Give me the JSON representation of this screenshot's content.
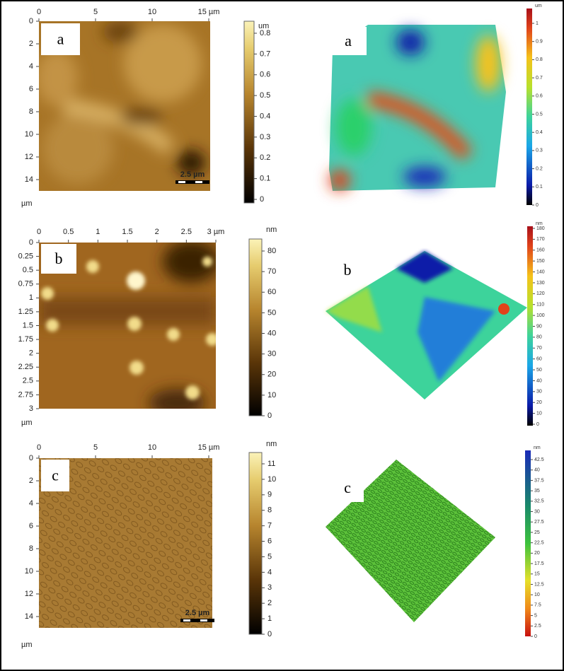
{
  "panels": [
    {
      "label": "a",
      "image2d": {
        "xticks": [
          "0",
          "5",
          "10",
          "15 µm"
        ],
        "yticks": [
          "0",
          "2",
          "4",
          "6",
          "8",
          "10",
          "12",
          "14"
        ],
        "axis_unit": "µm",
        "scale_bar": "2.5 µm"
      },
      "colorbar2d": {
        "unit": "um",
        "ticks": [
          "0.8",
          "0.7",
          "0.6",
          "0.5",
          "0.4",
          "0.3",
          "0.2",
          "0.1",
          "0"
        ]
      },
      "colorbar3d": {
        "unit": "um",
        "ticks": [
          "1",
          "0.9",
          "0.8",
          "0.7",
          "0.6",
          "0.5",
          "0.4",
          "0.3",
          "0.2",
          "0.1",
          "0"
        ]
      }
    },
    {
      "label": "b",
      "image2d": {
        "xticks": [
          "0",
          "0.5",
          "1",
          "1.5",
          "2",
          "2.5",
          "3 µm"
        ],
        "yticks": [
          "0",
          "0.25",
          "0.5",
          "0.75",
          "1",
          "1.25",
          "1.5",
          "1.75",
          "2",
          "2.25",
          "2.5",
          "2.75",
          "3"
        ],
        "axis_unit": "µm"
      },
      "colorbar2d": {
        "unit": "nm",
        "ticks": [
          "80",
          "70",
          "60",
          "50",
          "40",
          "30",
          "20",
          "10",
          "0"
        ]
      },
      "colorbar3d": {
        "unit": "nm",
        "ticks": [
          "180",
          "170",
          "160",
          "150",
          "140",
          "130",
          "120",
          "110",
          "100",
          "90",
          "80",
          "70",
          "60",
          "50",
          "40",
          "30",
          "20",
          "10",
          "0"
        ]
      }
    },
    {
      "label": "c",
      "image2d": {
        "xticks": [
          "0",
          "5",
          "10",
          "15 µm"
        ],
        "yticks": [
          "0",
          "2",
          "4",
          "6",
          "8",
          "10",
          "12",
          "14"
        ],
        "axis_unit": "µm",
        "scale_bar": "2.5 µm"
      },
      "colorbar2d": {
        "unit": "nm",
        "ticks": [
          "11",
          "10",
          "9",
          "8",
          "7",
          "6",
          "5",
          "4",
          "3",
          "2",
          "1",
          "0"
        ]
      },
      "colorbar3d": {
        "unit": "nm",
        "ticks": [
          "42.5",
          "40",
          "37.5",
          "35",
          "32.5",
          "30",
          "27.5",
          "25",
          "22.5",
          "20",
          "17.5",
          "15",
          "12.5",
          "10",
          "7.5",
          "5",
          "2.5",
          "0"
        ]
      }
    }
  ]
}
